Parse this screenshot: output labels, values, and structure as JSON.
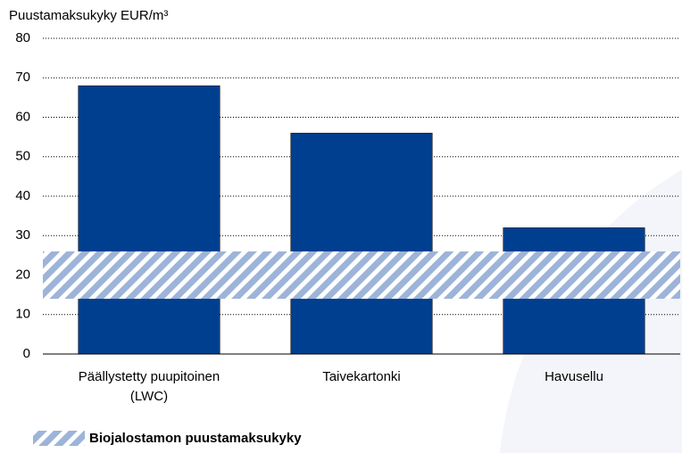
{
  "chart_data": {
    "type": "bar",
    "title": "Puustamaksukyky EUR/m³",
    "categories": [
      "Päällystetty puupitoinen\n(LWC)",
      "Taivekartonki",
      "Havusellu"
    ],
    "values": [
      68,
      56,
      32
    ],
    "color": "#003f8f",
    "ylim": [
      0,
      80
    ],
    "yticks": [
      0,
      10,
      20,
      30,
      40,
      50,
      60,
      70,
      80
    ],
    "grid": true,
    "band": {
      "name": "Biojalostamon puustamaksukyky",
      "range": [
        14,
        26
      ],
      "color": "#9db4d8"
    }
  }
}
